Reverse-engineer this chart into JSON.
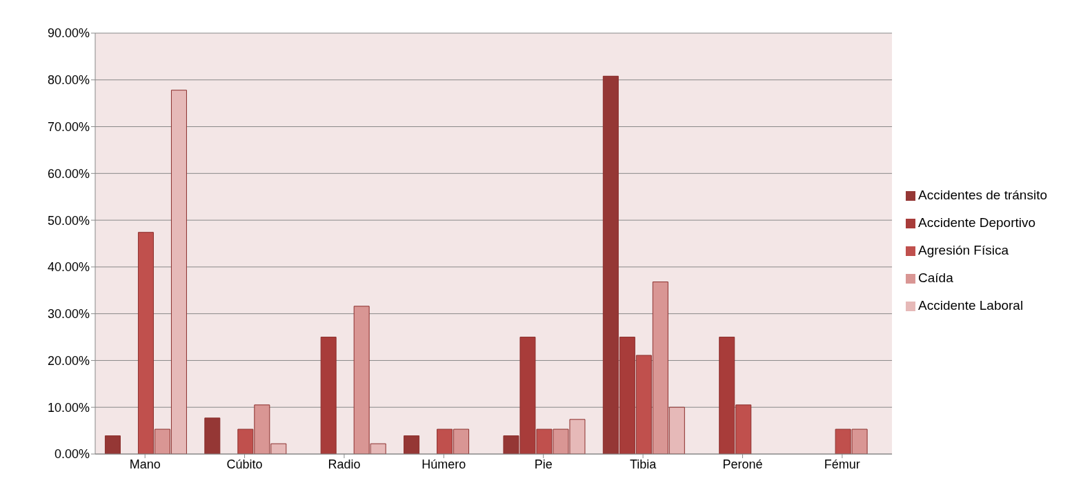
{
  "chart_data": {
    "type": "bar",
    "categories": [
      "Mano",
      "Cúbito",
      "Radio",
      "Húmero",
      "Pie",
      "Tibia",
      "Peroné",
      "Fémur"
    ],
    "series": [
      {
        "name": "Accidentes de tránsito",
        "color": "#953735",
        "values": [
          3.9,
          7.7,
          0,
          3.9,
          3.9,
          80.8,
          0,
          0
        ]
      },
      {
        "name": "Accidente Deportivo",
        "color": "#a83c3a",
        "values": [
          0,
          0,
          25,
          0,
          25,
          25,
          25,
          0
        ]
      },
      {
        "name": "Agresión Física",
        "color": "#c0504d",
        "values": [
          47.4,
          5.3,
          0,
          5.3,
          5.3,
          21.1,
          10.5,
          5.3
        ]
      },
      {
        "name": "Caída",
        "color": "#d99694",
        "values": [
          5.3,
          10.5,
          31.6,
          5.3,
          5.3,
          36.8,
          0,
          5.3
        ]
      },
      {
        "name": "Accidente Laboral",
        "color": "#e6b9b8",
        "values": [
          77.8,
          2.2,
          2.2,
          0,
          7.4,
          10,
          0,
          0
        ]
      }
    ],
    "ylim": [
      0,
      90
    ],
    "yticks": [
      {
        "value": 0,
        "label": "0.00%"
      },
      {
        "value": 10,
        "label": "10.00%"
      },
      {
        "value": 20,
        "label": "20.00%"
      },
      {
        "value": 30,
        "label": "30.00%"
      },
      {
        "value": 40,
        "label": "40.00%"
      },
      {
        "value": 50,
        "label": "50.00%"
      },
      {
        "value": 60,
        "label": "60.00%"
      },
      {
        "value": 70,
        "label": "70.00%"
      },
      {
        "value": 80,
        "label": "80.00%"
      },
      {
        "value": 90,
        "label": "90.00%"
      }
    ],
    "grid": "y",
    "legend": "right"
  }
}
